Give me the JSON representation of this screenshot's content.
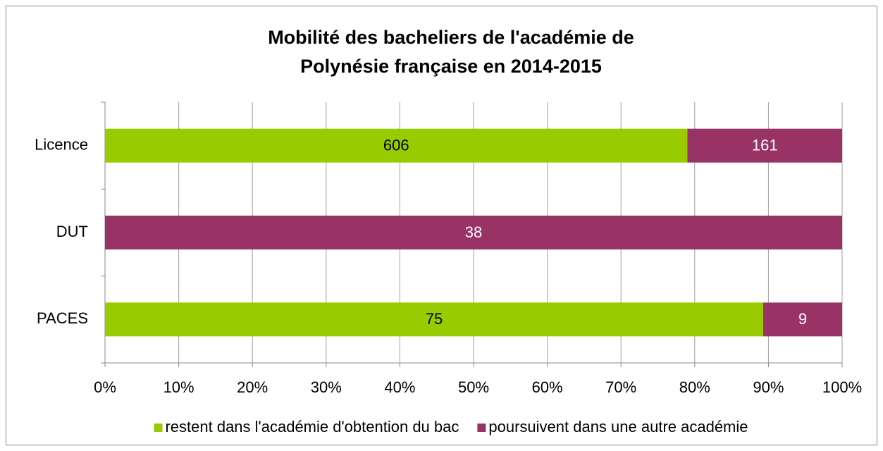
{
  "chart_data": {
    "type": "bar",
    "orientation": "horizontal",
    "stacked": "percent",
    "title": [
      "Mobilité des bacheliers de l'académie de",
      "Polynésie française en 2014-2015"
    ],
    "categories": [
      "Licence",
      "DUT",
      "PACES"
    ],
    "series": [
      {
        "name": "restent dans l'académie d'obtention du bac",
        "color": "#99cc00",
        "label_color": "#000000",
        "values": [
          606,
          0,
          75
        ]
      },
      {
        "name": "poursuivent dans une autre académie",
        "color": "#993366",
        "label_color": "#ffffff",
        "values": [
          161,
          38,
          9
        ]
      }
    ],
    "xlim": [
      0,
      100
    ],
    "xticks": [
      {
        "value": 0,
        "label": "0%"
      },
      {
        "value": 10,
        "label": "10%"
      },
      {
        "value": 20,
        "label": "20%"
      },
      {
        "value": 30,
        "label": "30%"
      },
      {
        "value": 40,
        "label": "40%"
      },
      {
        "value": 50,
        "label": "50%"
      },
      {
        "value": 60,
        "label": "60%"
      },
      {
        "value": 70,
        "label": "70%"
      },
      {
        "value": 80,
        "label": "80%"
      },
      {
        "value": 90,
        "label": "90%"
      },
      {
        "value": 100,
        "label": "100%"
      }
    ],
    "grid": true,
    "legend": "bottom"
  }
}
